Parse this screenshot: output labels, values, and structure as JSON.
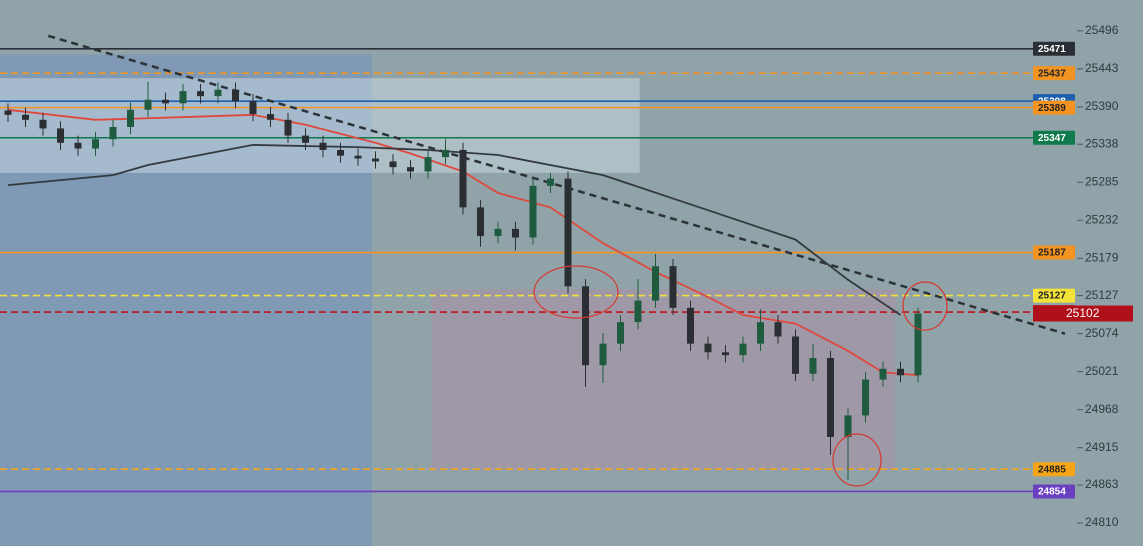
{
  "chart_data": {
    "type": "candlestick",
    "ylim": [
      24778,
      25539
    ],
    "yticks": [
      25496,
      25443,
      25390,
      25338,
      25285,
      25232,
      25179,
      25127,
      25074,
      25021,
      24968,
      24915,
      24863,
      24810
    ],
    "up_color": "#1f5c3f",
    "down_color": "#2b2f33",
    "candles": {
      "open": [
        25385,
        25379,
        25372,
        25360,
        25340,
        25332,
        25345,
        25362,
        25386,
        25400,
        25395,
        25412,
        25405,
        25414,
        25398,
        25380,
        25372,
        25350,
        25340,
        25330,
        25322,
        25318,
        25314,
        25306,
        25300,
        25320,
        25330,
        25250,
        25210,
        25220,
        25208,
        25280,
        25290,
        25140,
        25030,
        25060,
        25090,
        25120,
        25168,
        25110,
        25060,
        25048,
        25044,
        25060,
        25090,
        25070,
        25018,
        25040,
        24930,
        24960,
        25010,
        25025,
        25016
      ],
      "high": [
        25395,
        25389,
        25382,
        25370,
        25350,
        25355,
        25372,
        25396,
        25425,
        25410,
        25422,
        25422,
        25424,
        25424,
        25408,
        25390,
        25382,
        25360,
        25350,
        25340,
        25332,
        25328,
        25324,
        25316,
        25330,
        25345,
        25340,
        25260,
        25230,
        25230,
        25290,
        25298,
        25300,
        25150,
        25075,
        25100,
        25150,
        25185,
        25178,
        25120,
        25070,
        25058,
        25070,
        25108,
        25100,
        25080,
        25060,
        25050,
        24970,
        25020,
        25035,
        25035,
        25110
      ],
      "low": [
        25369,
        25362,
        25350,
        25330,
        25322,
        25322,
        25335,
        25352,
        25376,
        25385,
        25385,
        25395,
        25395,
        25388,
        25370,
        25362,
        25340,
        25330,
        25320,
        25312,
        25308,
        25304,
        25296,
        25290,
        25290,
        25310,
        25240,
        25195,
        25200,
        25190,
        25198,
        25270,
        25130,
        25000,
        25005,
        25050,
        25080,
        25110,
        25100,
        25050,
        25038,
        25034,
        25034,
        25050,
        25060,
        25008,
        25008,
        24905,
        24870,
        24950,
        25000,
        25006,
        25006
      ],
      "close": [
        25379,
        25372,
        25360,
        25340,
        25332,
        25345,
        25362,
        25386,
        25400,
        25395,
        25412,
        25405,
        25414,
        25398,
        25380,
        25372,
        25350,
        25340,
        25330,
        25322,
        25318,
        25314,
        25306,
        25300,
        25320,
        25330,
        25250,
        25210,
        25220,
        25208,
        25280,
        25290,
        25140,
        25030,
        25060,
        25090,
        25120,
        25168,
        25110,
        25060,
        25048,
        25044,
        25060,
        25090,
        25070,
        25018,
        25040,
        24930,
        24960,
        25010,
        25025,
        25016,
        25102
      ]
    },
    "series": [
      {
        "color": "#e0483e",
        "x": [
          0,
          5,
          9,
          14,
          17,
          21,
          23,
          26,
          28,
          31,
          34,
          37,
          40,
          42,
          45,
          48,
          50,
          52
        ],
        "values": [
          25386,
          25372,
          25375,
          25379,
          25365,
          25340,
          25325,
          25300,
          25270,
          25250,
          25200,
          25160,
          25125,
          25100,
          25088,
          25050,
          25020,
          25016
        ]
      },
      {
        "color": "#333a40",
        "x": [
          0,
          6,
          8,
          14,
          20,
          24,
          28,
          34,
          40,
          45,
          48,
          51
        ],
        "values": [
          25281,
          25295,
          25309,
          25337,
          25334,
          25330,
          25323,
          25295,
          25246,
          25205,
          25149,
          25100
        ]
      }
    ],
    "trendline": {
      "color": "#2c3338",
      "x": [
        2.3,
        60.4
      ],
      "values": [
        25489,
        25074
      ]
    },
    "zones": [
      {
        "color": "#6f8fc4",
        "x": [
          -0.46,
          20.8
        ],
        "values": [
          24778,
          25463
        ]
      },
      {
        "color": "#d5e2ea",
        "x": [
          -0.46,
          36.1
        ],
        "values": [
          25298,
          25430
        ]
      },
      {
        "color": "#b38fa6",
        "x": [
          24.2,
          50.7
        ],
        "values": [
          24884,
          25136
        ]
      }
    ],
    "levels": [
      {
        "value": 25471,
        "color": "#2a2f36",
        "dashed": false
      },
      {
        "value": 25437,
        "color": "#f39422",
        "dashed": true
      },
      {
        "value": 25398,
        "color": "#1e5fb0",
        "dashed": false
      },
      {
        "value": 25389,
        "color": "#f39422",
        "dashed": false
      },
      {
        "value": 25347,
        "color": "#0f7a4c",
        "dashed": false
      },
      {
        "value": 25187,
        "color": "#f39422",
        "dashed": false
      },
      {
        "value": 25127,
        "color": "#f2e23a",
        "dashed": true
      },
      {
        "value": 25104,
        "color": "#c0131b",
        "dashed": true
      },
      {
        "value": 24885,
        "color": "#f5a516",
        "dashed": true
      },
      {
        "value": 24854,
        "color": "#6a3fc0",
        "dashed": false
      }
    ],
    "last_price": {
      "value": 25102,
      "color": "#b0101a"
    }
  }
}
